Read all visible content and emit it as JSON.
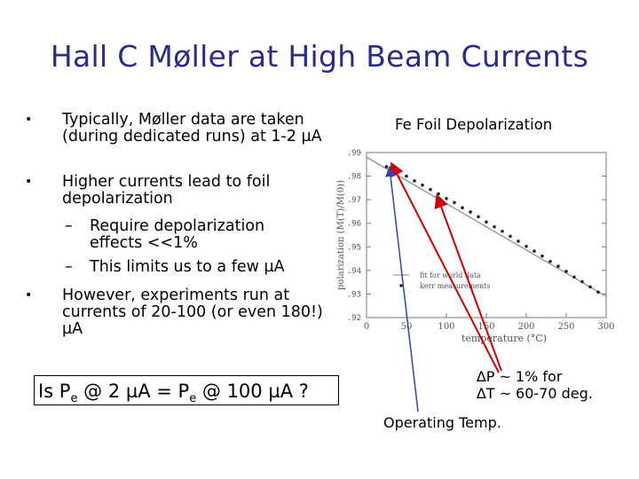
{
  "slide": {
    "title": "Hall C Møller at High Beam Currents",
    "bullets": [
      {
        "text": "Typically, Møller data are taken (during dedicated runs) at 1-2 µA"
      },
      {
        "text": "Higher currents lead to foil depolarization"
      },
      {
        "text": "However, experiments run at currents of 20-100 (or even 180!) µA"
      }
    ],
    "subbullets": [
      {
        "text": "Require depolarization effects <<1%"
      },
      {
        "text": "This limits us to a few µA"
      }
    ],
    "bullet_glyph": "•",
    "dash_glyph": "–",
    "box": {
      "prefix": "Is P",
      "sub1": "e",
      "mid": " @ 2 µA = P",
      "sub2": "e",
      "suffix": " @ 100 µA ?"
    },
    "figure_title": "Fe Foil Depolarization",
    "annotation_line1": "∆P ~ 1% for",
    "annotation_line2": "∆T ~ 60-70 deg.",
    "operating_label": "Operating Temp."
  },
  "chart_data": {
    "type": "scatter",
    "xlabel": "temperature (°C)",
    "ylabel": "polarization (M(T)/M(0))",
    "xlim": [
      0,
      300
    ],
    "ylim": [
      0.92,
      0.99
    ],
    "x_ticks": [
      "0",
      "50",
      "100",
      "150",
      "200",
      "250",
      "300"
    ],
    "y_ticks": [
      ".99",
      ".98",
      ".97",
      ".96",
      ".95",
      ".94",
      ".93",
      ".92"
    ],
    "legend": [
      "fit for world data",
      "kerr measurements"
    ],
    "legend_position": "lower-left",
    "fit_line": {
      "x": [
        0,
        300
      ],
      "y": [
        0.988,
        0.929
      ]
    },
    "points": {
      "x": [
        25,
        30,
        40,
        50,
        60,
        70,
        80,
        90,
        100,
        110,
        120,
        130,
        140,
        150,
        160,
        170,
        180,
        190,
        200,
        210,
        220,
        230,
        240,
        250,
        260,
        270,
        280,
        290
      ],
      "y": [
        0.984,
        0.9835,
        0.9818,
        0.98,
        0.978,
        0.9762,
        0.9743,
        0.9725,
        0.9705,
        0.9688,
        0.9666,
        0.9648,
        0.9628,
        0.9606,
        0.9585,
        0.9566,
        0.9545,
        0.9524,
        0.9502,
        0.9482,
        0.9461,
        0.9438,
        0.9418,
        0.9396,
        0.9372,
        0.9352,
        0.933,
        0.9308
      ]
    },
    "arrow_color": "#d00000",
    "arrow_blue": "#3344aa"
  }
}
